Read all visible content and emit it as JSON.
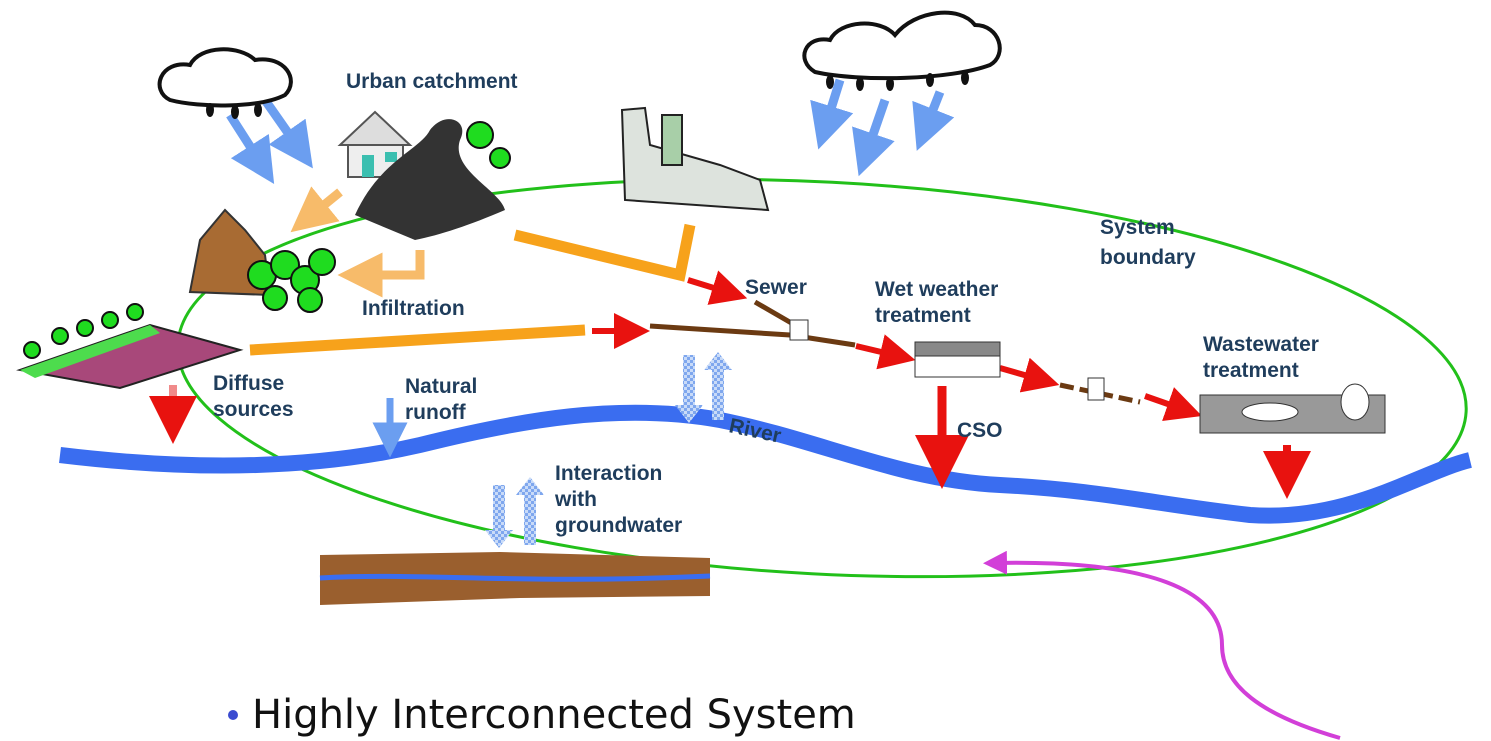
{
  "labels": {
    "urban_catchment": [
      "Urban catchment"
    ],
    "infiltration": [
      "Infiltration"
    ],
    "diffuse_sources": [
      "Diffuse",
      "sources"
    ],
    "natural_runoff": [
      "Natural",
      "runoff"
    ],
    "sewer": [
      "Sewer"
    ],
    "wet_weather_treatment": [
      "Wet weather",
      "treatment"
    ],
    "system_boundary": [
      "System",
      "boundary"
    ],
    "wastewater_treatment": [
      "Wastewater",
      "treatment"
    ],
    "river": [
      "River"
    ],
    "cso": [
      "CSO"
    ],
    "groundwater": [
      "Interaction",
      "with",
      "groundwater"
    ]
  },
  "bullet": "Highly Interconnected System"
}
